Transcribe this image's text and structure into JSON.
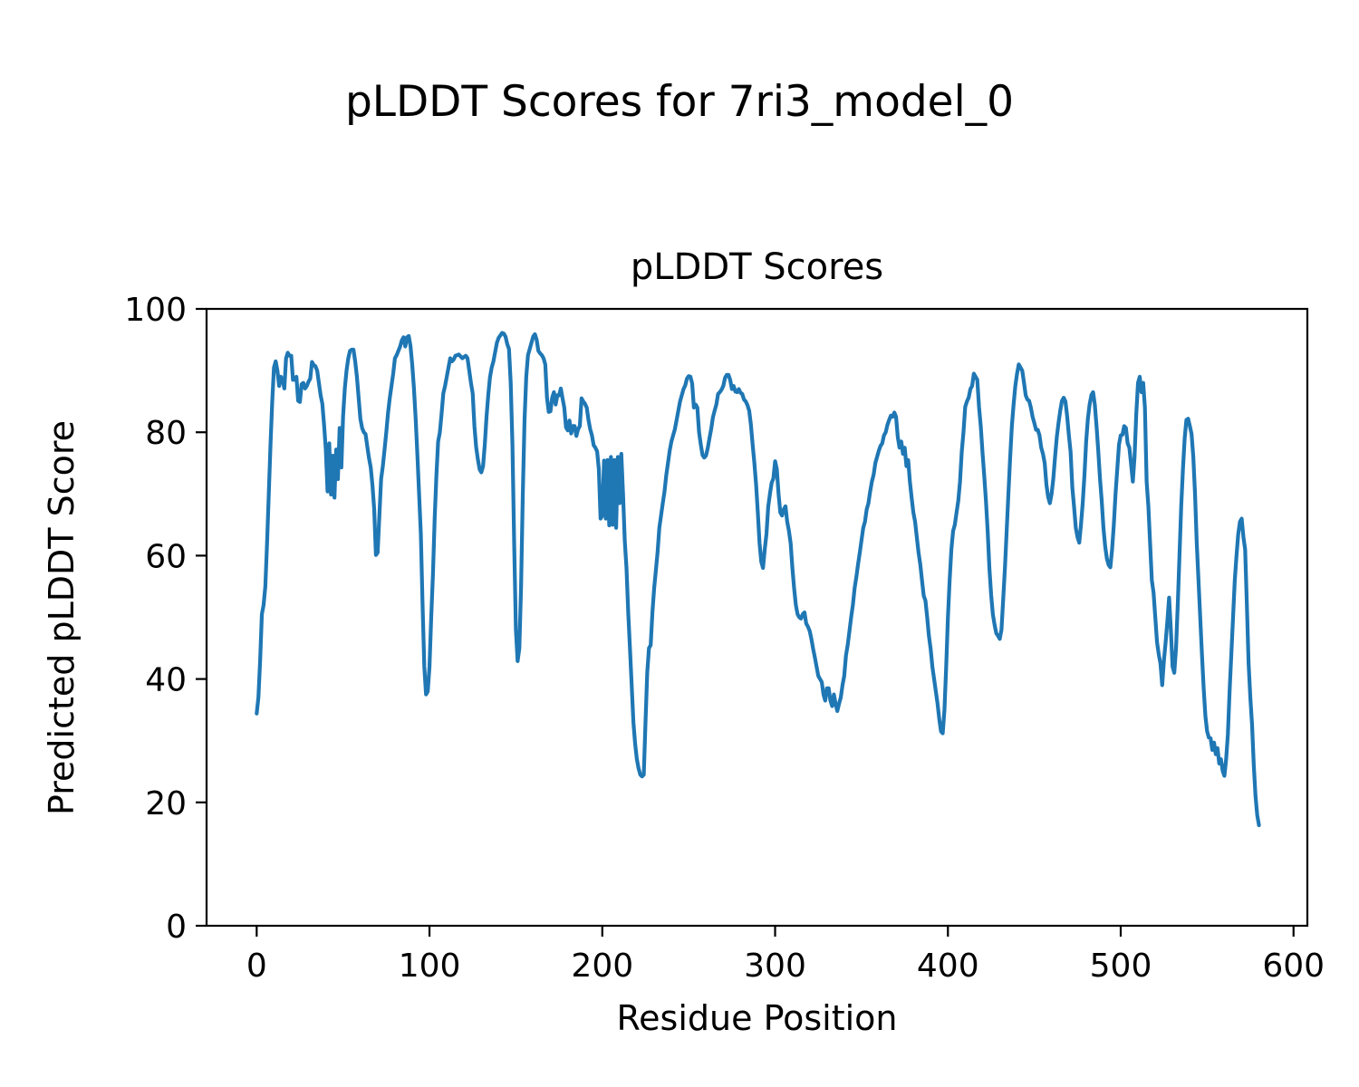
{
  "suptitle": "pLDDT Scores for 7ri3_model_0",
  "chart_data": {
    "type": "line",
    "title": "pLDDT Scores",
    "xlabel": "Residue Position",
    "ylabel": "Predicted pLDDT Score",
    "xlim": [
      -29,
      608
    ],
    "ylim": [
      0,
      100
    ],
    "x_ticks": [
      0,
      100,
      200,
      300,
      400,
      500,
      600
    ],
    "y_ticks": [
      0,
      20,
      40,
      60,
      80,
      100
    ],
    "grid": false,
    "legend": "none",
    "line_color": "#1f77b4",
    "background_color": "#ffffff",
    "text_color": "#000000",
    "series": [
      {
        "name": "pLDDT",
        "x_start": 0,
        "x_step": 1,
        "values": [
          34.4,
          37,
          43,
          50.5,
          52,
          55,
          62,
          70,
          78,
          85,
          90.5,
          91.5,
          90,
          87.5,
          89,
          88.5,
          87.1,
          92,
          92.9,
          92.4,
          92.4,
          88.5,
          88.5,
          89,
          85.1,
          84.9,
          87.8,
          88,
          87.1,
          87.5,
          88.2,
          88.7,
          91.4,
          90.9,
          90.7,
          90,
          88,
          86,
          84.6,
          81.2,
          77.2,
          70.4,
          78.2,
          69.9,
          76.2,
          69.4,
          77.2,
          72.4,
          80.7,
          74.3,
          82.6,
          87.1,
          90,
          92,
          93.2,
          93.4,
          93.4,
          91.5,
          89,
          85.6,
          82.2,
          80.7,
          80,
          79.7,
          77.7,
          75.8,
          74.3,
          71.4,
          67.5,
          60.1,
          60.5,
          66.5,
          72.4,
          74.5,
          77.2,
          80,
          83.1,
          85.5,
          87.5,
          89.5,
          92,
          92.5,
          93.2,
          93.9,
          94.9,
          95.4,
          93.9,
          95.4,
          95.6,
          94,
          91,
          87.1,
          82.2,
          76.3,
          69.9,
          63.5,
          52,
          42,
          37.5,
          38,
          42,
          50,
          57,
          66,
          73,
          78.5,
          80,
          83,
          86.3,
          87.5,
          89,
          90.5,
          92,
          91.5,
          91.8,
          92.4,
          92.5,
          92.6,
          92.3,
          92,
          92.2,
          92.4,
          92,
          90,
          88,
          86.3,
          81,
          77.6,
          75.6,
          74,
          73.5,
          74.5,
          78,
          82.5,
          86,
          88.9,
          90.5,
          91.5,
          93,
          94.5,
          95.3,
          95.7,
          96.1,
          96,
          95.5,
          94.3,
          93.5,
          88,
          78,
          62,
          48,
          42.9,
          45,
          55,
          70,
          82,
          89,
          92.5,
          93.5,
          94.5,
          95.5,
          95.9,
          95,
          93.2,
          92.8,
          92.5,
          92,
          91,
          85.6,
          83.3,
          83.4,
          85.6,
          86.5,
          84.5,
          86,
          86,
          87.1,
          85.5,
          84,
          80.8,
          80.3,
          81.9,
          79.8,
          81,
          81,
          79.4,
          80.5,
          81,
          85.5,
          85,
          84.6,
          84,
          82,
          80.5,
          79.5,
          77.9,
          77.5,
          76.9,
          74,
          66,
          66.5,
          75.4,
          66,
          75.5,
          64.9,
          76,
          65,
          75.5,
          64.5,
          76,
          68.5,
          76.5,
          70,
          62.4,
          58,
          50.8,
          45,
          39,
          33,
          29.5,
          27,
          25.5,
          24.5,
          24.2,
          24.5,
          33,
          41,
          45,
          45.5,
          50.8,
          54.7,
          57.6,
          60.6,
          64.5,
          66.5,
          68.5,
          70.4,
          73,
          75,
          77,
          78.5,
          79.5,
          80.5,
          82,
          83.5,
          85,
          86,
          87,
          87.6,
          88.7,
          89.1,
          89,
          87.9,
          84,
          84.5,
          84,
          80,
          78,
          76.3,
          75.9,
          76.2,
          77.4,
          79,
          80.5,
          82.4,
          83.5,
          84.5,
          86.2,
          86.5,
          86.9,
          87.5,
          88.8,
          89.3,
          89.3,
          88.5,
          87,
          87.5,
          86.6,
          86.5,
          87,
          86.4,
          86.2,
          85.3,
          85,
          84.4,
          83.5,
          81.2,
          78,
          75,
          71.5,
          67,
          62,
          59,
          58,
          61,
          63.5,
          67.9,
          70,
          71.8,
          72.5,
          75.3,
          74,
          70,
          67,
          66.5,
          67.5,
          68,
          65.5,
          64,
          62,
          58,
          54.7,
          52,
          50.5,
          50,
          49.8,
          50.5,
          50.8,
          49,
          48.5,
          47.8,
          46.5,
          44.9,
          43.5,
          42,
          40.5,
          40,
          39.5,
          37.5,
          36.5,
          38.5,
          38.5,
          36.5,
          35.6,
          37.5,
          36,
          34.8,
          36,
          37,
          39,
          40.5,
          43.8,
          45.5,
          47.7,
          50,
          52,
          54.7,
          56.5,
          58.6,
          60.5,
          62.5,
          64.5,
          65.5,
          67.5,
          68.5,
          70.4,
          72,
          73.1,
          75,
          76,
          77,
          77.8,
          78.2,
          79.5,
          80,
          81.2,
          82,
          82.7,
          82.5,
          83.2,
          82.5,
          79.2,
          77.5,
          78.5,
          76.5,
          77.5,
          74.5,
          75.5,
          72,
          69.4,
          67,
          65.5,
          63,
          60.5,
          58.6,
          56,
          53.5,
          52.7,
          50,
          47,
          44.9,
          42,
          40,
          38,
          36,
          33.5,
          31.5,
          31.2,
          35,
          42,
          50,
          56,
          61,
          64,
          65,
          67,
          68.9,
          72,
          76.8,
          80,
          84.1,
          85,
          85.6,
          87,
          87.5,
          89.5,
          89,
          88.5,
          84.1,
          81,
          76.8,
          73,
          68.9,
          64,
          58,
          53.7,
          50.5,
          48.8,
          47.4,
          47,
          46.5,
          48,
          53,
          58,
          64,
          70,
          75.8,
          81,
          84.5,
          87.5,
          89.5,
          91,
          90.5,
          90,
          88.1,
          86,
          85.3,
          85.1,
          84,
          82.5,
          81.5,
          80.4,
          80.4,
          79.5,
          77.5,
          76.5,
          75,
          71.5,
          69.5,
          68.5,
          70,
          72.5,
          76,
          79.2,
          81.5,
          83.5,
          85.1,
          85.6,
          85,
          82.6,
          79.5,
          76.8,
          71,
          67.9,
          64.5,
          63,
          62.1,
          65,
          68.5,
          73,
          78.5,
          82.2,
          84.5,
          86,
          86.5,
          84.5,
          81,
          77,
          72.5,
          68.9,
          64.5,
          61.5,
          59.5,
          58.5,
          58.1,
          61,
          65,
          70,
          74,
          78,
          79.5,
          79.6,
          81,
          80.7,
          78.2,
          77.5,
          74.8,
          72,
          76,
          83,
          88,
          89,
          86.5,
          88,
          84,
          72,
          68,
          62,
          56,
          54,
          50,
          46,
          44,
          42.5,
          39,
          43,
          46,
          49.4,
          53.2,
          48,
          42,
          41,
          45,
          52,
          60,
          68,
          74,
          79,
          82,
          82.2,
          81,
          79.7,
          76,
          70,
          62,
          56,
          50,
          44,
          38.5,
          34,
          31.5,
          30.5,
          30.4,
          28.5,
          29.7,
          27.8,
          28.8,
          26.3,
          27,
          25.1,
          24.3,
          27,
          31,
          38,
          44,
          50,
          56,
          60,
          63.5,
          65.5,
          66,
          63,
          61,
          52,
          42.5,
          37,
          32.6,
          26,
          21,
          17.9,
          16.3
        ]
      }
    ]
  }
}
